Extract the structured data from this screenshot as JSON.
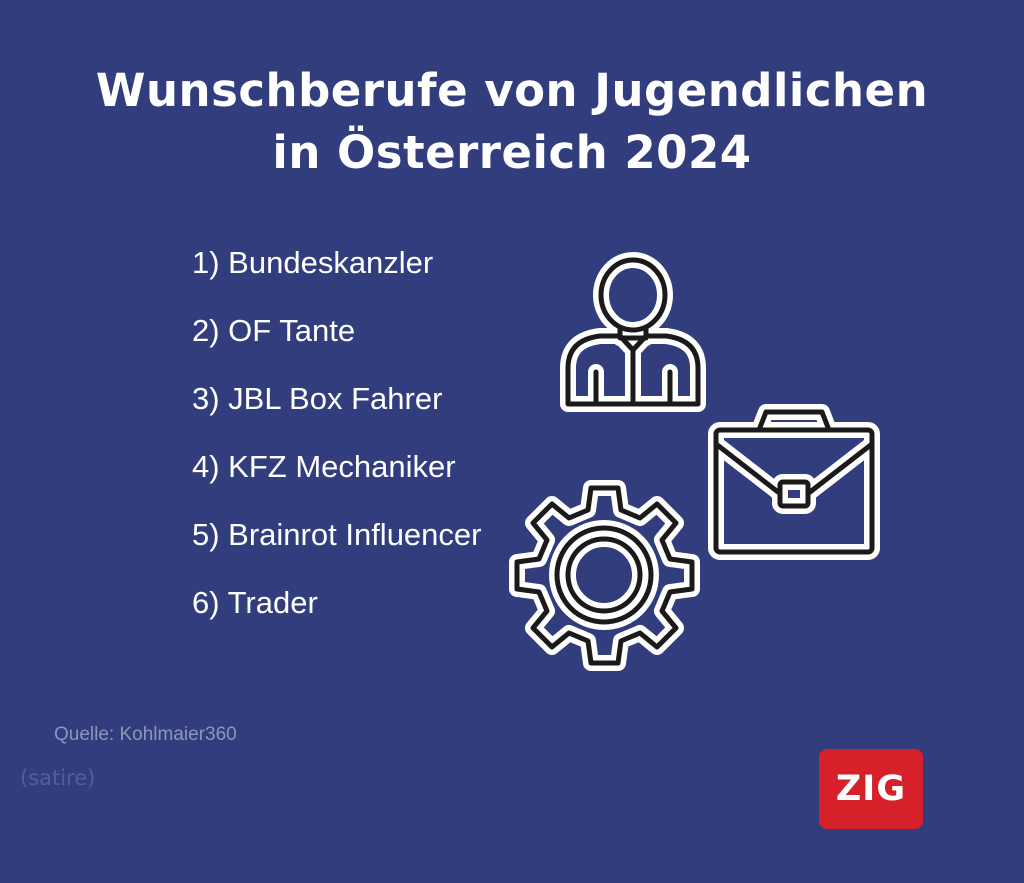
{
  "title": {
    "line1": "Wunschberufe von Jugendlichen",
    "line2": "in Österreich 2024"
  },
  "list": [
    "1) Bundeskanzler",
    "2) OF Tante",
    "3) JBL Box Fahrer",
    "4) KFZ Mechaniker",
    "5) Brainrot Influencer",
    "6) Trader"
  ],
  "source": "Quelle: Kohlmaier360",
  "note": "(satire)",
  "logo": "ZIG",
  "colors": {
    "background": "#323d7e",
    "logo": "#d6202a"
  },
  "icons": [
    "person-icon",
    "briefcase-icon",
    "gear-icon"
  ]
}
